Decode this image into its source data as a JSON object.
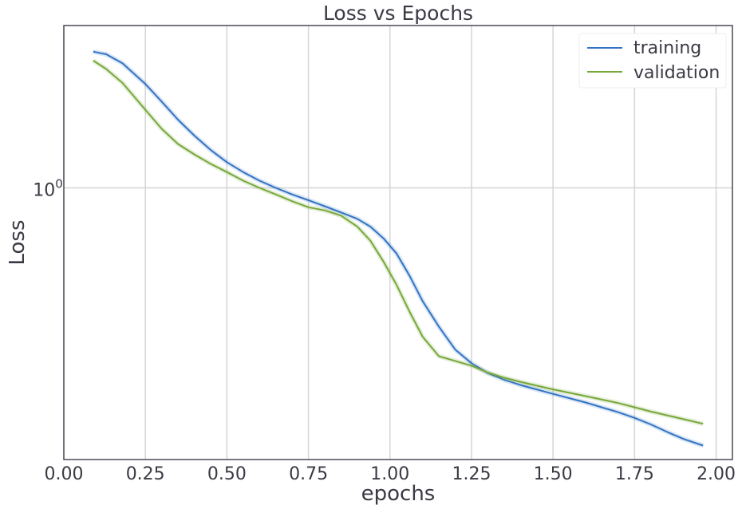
{
  "chart_data": {
    "type": "line",
    "title": "Loss vs Epochs",
    "xlabel": "epochs",
    "ylabel": "Loss",
    "yscale": "log",
    "xlim": [
      0.0,
      2.05
    ],
    "ylim": [
      0.228,
      2.42
    ],
    "xticks": [
      0.0,
      0.25,
      0.5,
      0.75,
      1.0,
      1.25,
      1.5,
      1.75,
      2.0
    ],
    "xtick_labels": [
      "0.00",
      "0.25",
      "0.50",
      "0.75",
      "1.00",
      "1.25",
      "1.50",
      "1.75",
      "2.00"
    ],
    "yticks": [
      1.0
    ],
    "ytick_labels": [
      {
        "base": "10",
        "exp": "0"
      }
    ],
    "grid": true,
    "legend_position": "top-right",
    "colors": {
      "training": "#3373c4",
      "validation": "#77a83a",
      "grid": "#d5d5d5",
      "frame": "#4a4a58"
    },
    "series": [
      {
        "name": "training",
        "x": [
          0.09,
          0.13,
          0.18,
          0.25,
          0.3,
          0.35,
          0.4,
          0.45,
          0.5,
          0.55,
          0.6,
          0.65,
          0.7,
          0.75,
          0.8,
          0.85,
          0.9,
          0.94,
          0.98,
          1.02,
          1.06,
          1.1,
          1.15,
          1.2,
          1.25,
          1.3,
          1.35,
          1.4,
          1.5,
          1.6,
          1.7,
          1.75,
          1.8,
          1.85,
          1.9,
          1.96
        ],
        "y": [
          2.1,
          2.07,
          1.97,
          1.76,
          1.6,
          1.45,
          1.33,
          1.23,
          1.15,
          1.09,
          1.04,
          1.0,
          0.965,
          0.935,
          0.905,
          0.875,
          0.845,
          0.81,
          0.76,
          0.7,
          0.62,
          0.54,
          0.47,
          0.415,
          0.385,
          0.365,
          0.352,
          0.342,
          0.326,
          0.311,
          0.295,
          0.286,
          0.276,
          0.265,
          0.255,
          0.246
        ]
      },
      {
        "name": "validation",
        "x": [
          0.09,
          0.13,
          0.18,
          0.25,
          0.3,
          0.35,
          0.4,
          0.45,
          0.5,
          0.55,
          0.6,
          0.65,
          0.7,
          0.75,
          0.8,
          0.85,
          0.9,
          0.94,
          0.98,
          1.02,
          1.06,
          1.1,
          1.15,
          1.2,
          1.25,
          1.3,
          1.35,
          1.4,
          1.5,
          1.6,
          1.7,
          1.75,
          1.8,
          1.85,
          1.9,
          1.96
        ],
        "y": [
          2.0,
          1.91,
          1.77,
          1.53,
          1.38,
          1.27,
          1.2,
          1.14,
          1.09,
          1.04,
          1.0,
          0.965,
          0.93,
          0.9,
          0.885,
          0.86,
          0.81,
          0.75,
          0.67,
          0.59,
          0.51,
          0.445,
          0.4,
          0.39,
          0.38,
          0.366,
          0.356,
          0.348,
          0.334,
          0.322,
          0.31,
          0.303,
          0.296,
          0.29,
          0.284,
          0.277
        ]
      }
    ]
  }
}
